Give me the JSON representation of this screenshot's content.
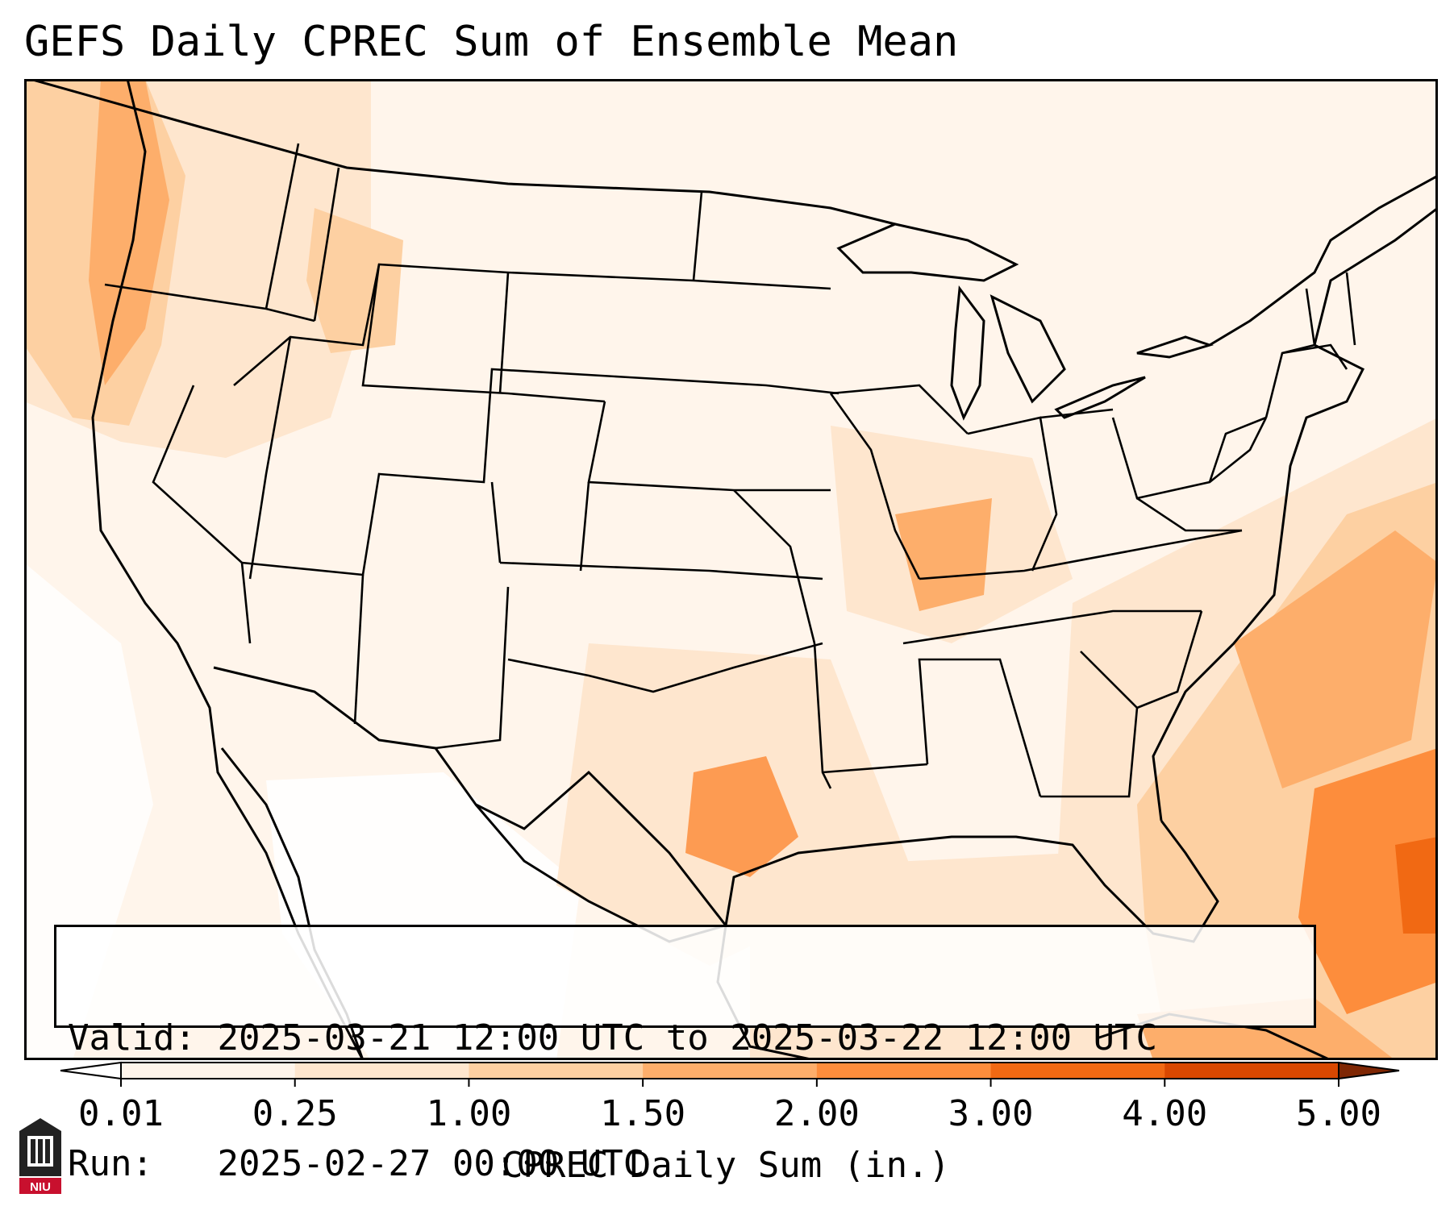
{
  "title": "GEFS Daily CPREC Sum of Ensemble Mean",
  "map": {
    "region": "Contiguous United States and adjacent areas",
    "variable": "CPREC",
    "background_color": "#fff5eb",
    "border_color": "#000000"
  },
  "info_box": {
    "valid_label": "Valid:",
    "valid_value": "2025-03-21 12:00 UTC to 2025-03-22 12:00 UTC",
    "run_label": "Run:  ",
    "run_value": "2025-02-27 00:00 UTC"
  },
  "colorbar": {
    "label": "CPREC Daily Sum (in.)",
    "ticks": [
      "0.01",
      "0.25",
      "1.00",
      "1.50",
      "2.00",
      "3.00",
      "4.00",
      "5.00"
    ],
    "colors": [
      "#fff5eb",
      "#fee6ce",
      "#fdd0a2",
      "#fdae6b",
      "#fd8d3c",
      "#f16913",
      "#d94801",
      "#a63603"
    ],
    "under_color": "#ffffff",
    "over_color": "#7f2704"
  },
  "logo": {
    "text": "NIU",
    "icon": "niu-logo-icon"
  }
}
